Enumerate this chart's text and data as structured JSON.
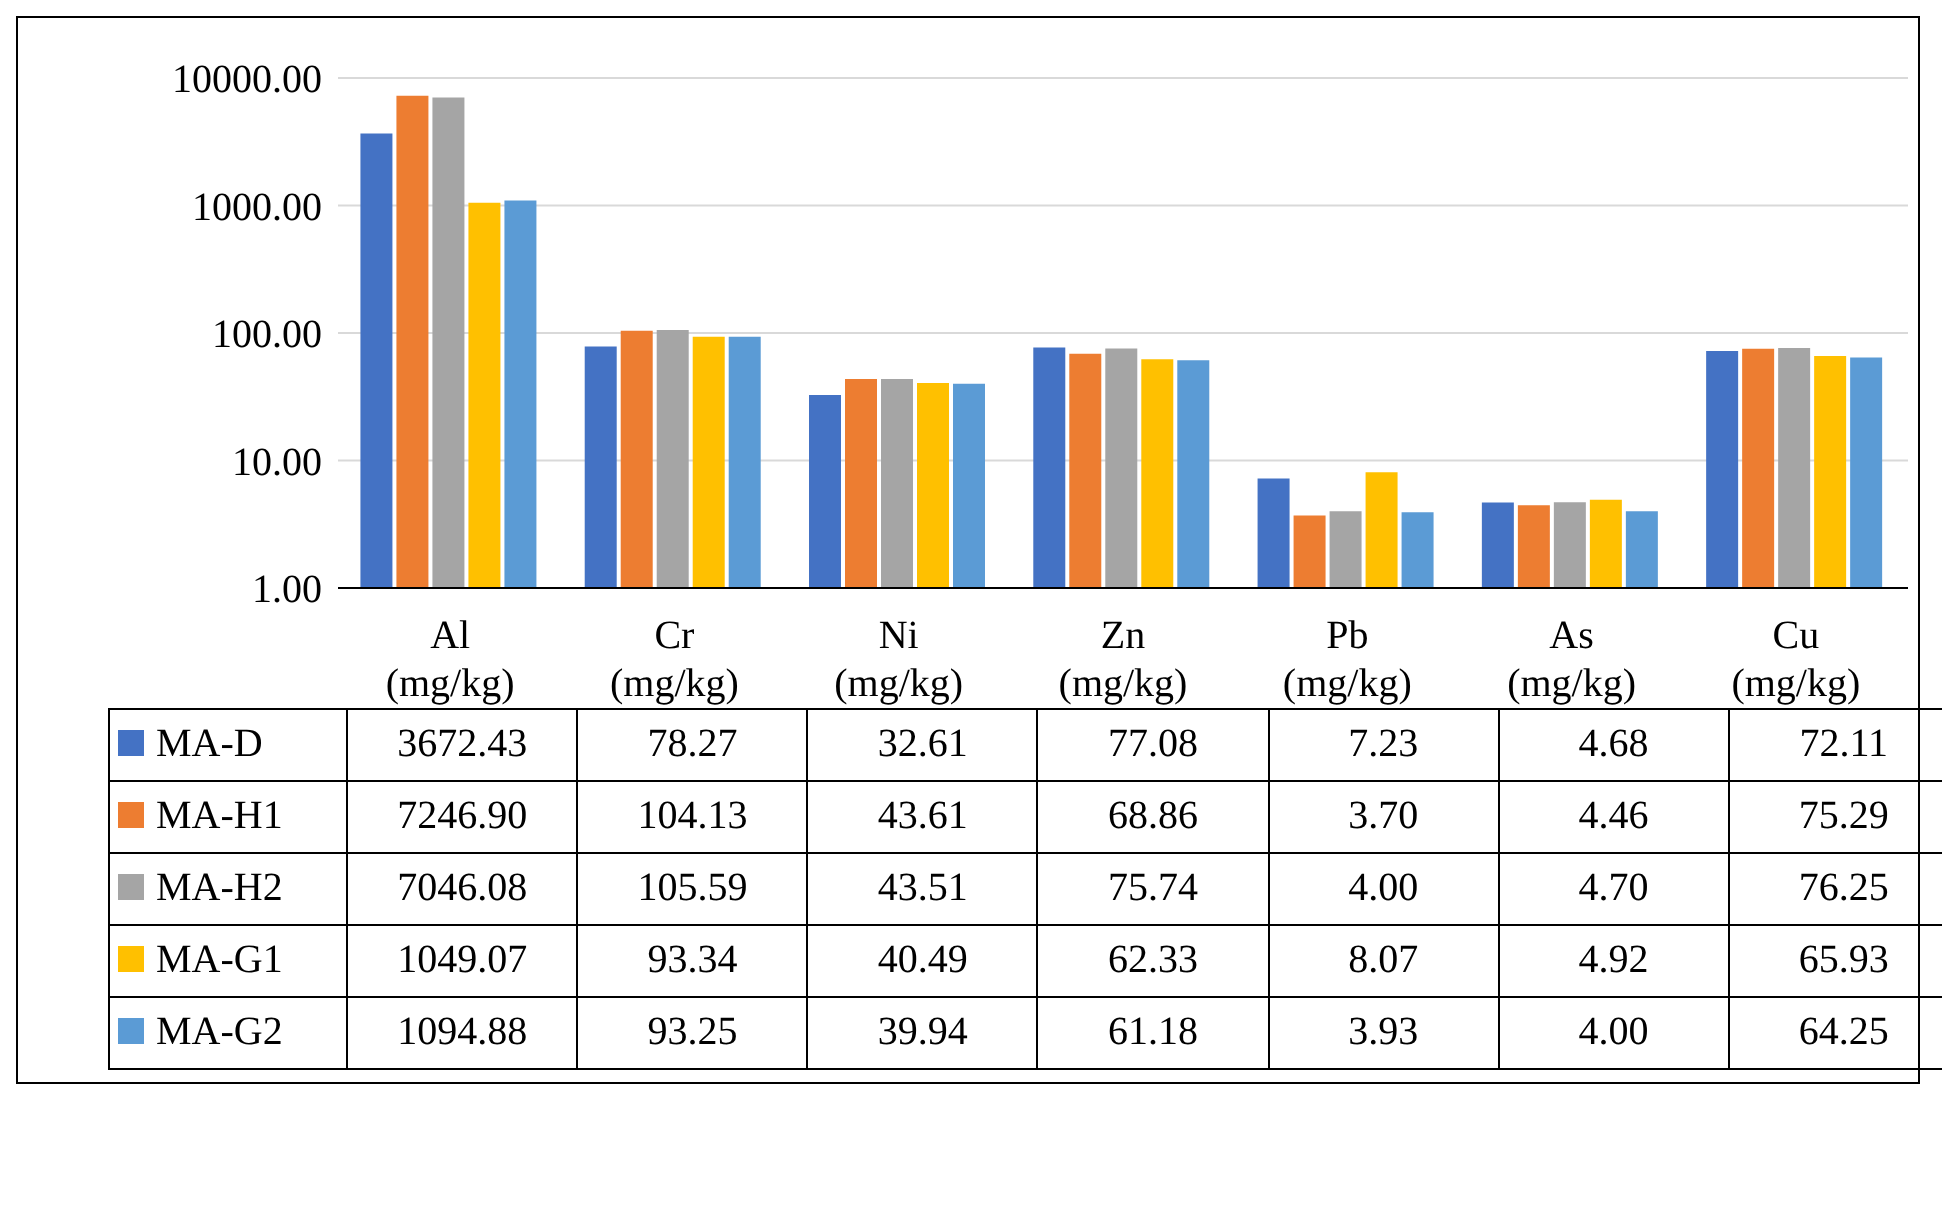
{
  "chart_data": {
    "type": "bar",
    "categories": [
      "Al (mg/kg)",
      "Cr (mg/kg)",
      "Ni (mg/kg)",
      "Zn (mg/kg)",
      "Pb (mg/kg)",
      "As (mg/kg)",
      "Cu (mg/kg)"
    ],
    "series": [
      {
        "name": "MA-D",
        "color": "#4472c4",
        "values": [
          3672.43,
          78.27,
          32.61,
          77.08,
          7.23,
          4.68,
          72.11
        ],
        "value_labels": [
          "3672.43",
          "78.27",
          "32.61",
          "77.08",
          "7.23",
          "4.68",
          "72.11"
        ]
      },
      {
        "name": "MA-H1",
        "color": "#ed7d31",
        "values": [
          7246.9,
          104.13,
          43.61,
          68.86,
          3.7,
          4.46,
          75.29
        ],
        "value_labels": [
          "7246.90",
          "104.13",
          "43.61",
          "68.86",
          "3.70",
          "4.46",
          "75.29"
        ]
      },
      {
        "name": "MA-H2",
        "color": "#a5a5a5",
        "values": [
          7046.08,
          105.59,
          43.51,
          75.74,
          4.0,
          4.7,
          76.25
        ],
        "value_labels": [
          "7046.08",
          "105.59",
          "43.51",
          "75.74",
          "4.00",
          "4.70",
          "76.25"
        ]
      },
      {
        "name": "MA-G1",
        "color": "#ffc000",
        "values": [
          1049.07,
          93.34,
          40.49,
          62.33,
          8.07,
          4.92,
          65.93
        ],
        "value_labels": [
          "1049.07",
          "93.34",
          "40.49",
          "62.33",
          "8.07",
          "4.92",
          "65.93"
        ]
      },
      {
        "name": "MA-G2",
        "color": "#5b9bd5",
        "values": [
          1094.88,
          93.25,
          39.94,
          61.18,
          3.93,
          4.0,
          64.25
        ],
        "value_labels": [
          "1094.88",
          "93.25",
          "39.94",
          "61.18",
          "3.93",
          "4.00",
          "64.25"
        ]
      }
    ],
    "log": true,
    "ylim": [
      1,
      10000
    ],
    "yticks": [
      {
        "value": 1,
        "label": "1.00"
      },
      {
        "value": 10,
        "label": "10.00"
      },
      {
        "value": 100,
        "label": "100.00"
      },
      {
        "value": 1000,
        "label": "1000.00"
      },
      {
        "value": 10000,
        "label": "10000.00"
      }
    ],
    "grid": "y",
    "legend": "bottom"
  }
}
